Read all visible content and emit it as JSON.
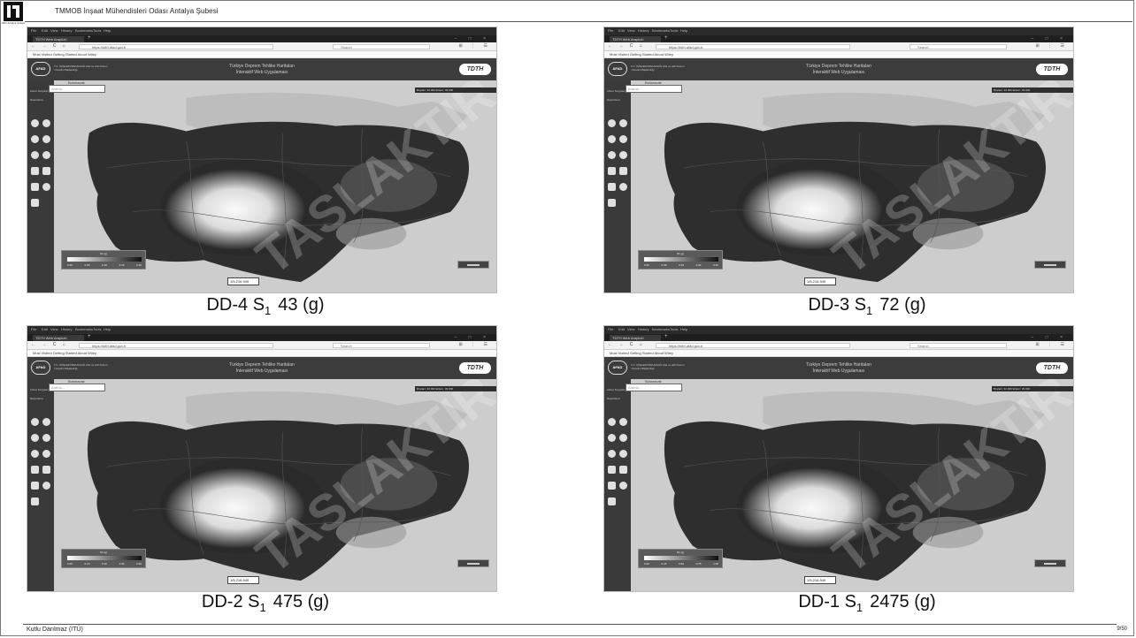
{
  "header": {
    "title": "TMMOB İnşaat Mühendisleri Odası Antalya Şubesi",
    "logo_caption": "İMO Antalya Şubesi"
  },
  "footer": {
    "author": "Kutlu Darılmaz (İTÜ)",
    "page": "9/50"
  },
  "browser": {
    "menu": [
      "File",
      "Edit",
      "View",
      "History",
      "Bookmarks",
      "Tools",
      "Help"
    ],
    "tab_title": "TDTH Web Arayüzü",
    "new_tab": "+",
    "window_controls": "– □ ×",
    "nav_buttons": "← → C ⌂",
    "url": "https://tdth.afad.gov.tr",
    "search_placeholder": "Search",
    "toolbar_icons": "⊞ ⋮ ☰",
    "bookmarks": "Most Visited   Getting Started   About Wiley"
  },
  "app": {
    "logo": "AFAD",
    "ministry": "T.C. İÇİŞLERİ BAKANLIĞI Afet ve Acil Durum Yönetimi Başkanlığı",
    "title_line1": "Türkiye Deprem Tehlike Haritaları",
    "title_line2": "İnteraktif Web Uygulaması",
    "brand": "TDTH",
    "sidebar_link1": "Adres Sorgulama",
    "sidebar_link2": "Raporlama",
    "search_label": "Bulunacak",
    "search_placeholder": "Arama...",
    "coord_readout": "Boylam: 32.000 Enlem: 39.000",
    "scale": "1/5.216.949",
    "legend_title": "S1 (g)"
  },
  "panels": [
    {
      "caption_main": "DD-4 S",
      "caption_sub": "1",
      "caption_rest": "43 (g)",
      "legend_ticks": [
        "0.00",
        "0.05",
        "0.10",
        "0.15",
        "0.20"
      ]
    },
    {
      "caption_main": "DD-3 S",
      "caption_sub": "1",
      "caption_rest": "72 (g)",
      "legend_ticks": [
        "0.00",
        "0.08",
        "0.16",
        "0.24",
        "0.32"
      ]
    },
    {
      "caption_main": "DD-2 S",
      "caption_sub": "1",
      "caption_rest": "475 (g)",
      "legend_ticks": [
        "0.00",
        "0.15",
        "0.30",
        "0.45",
        "0.60"
      ]
    },
    {
      "caption_main": "DD-1 S",
      "caption_sub": "1",
      "caption_rest": "2475 (g)",
      "legend_ticks": [
        "0.00",
        "0.25",
        "0.50",
        "0.75",
        "1.00"
      ]
    }
  ]
}
